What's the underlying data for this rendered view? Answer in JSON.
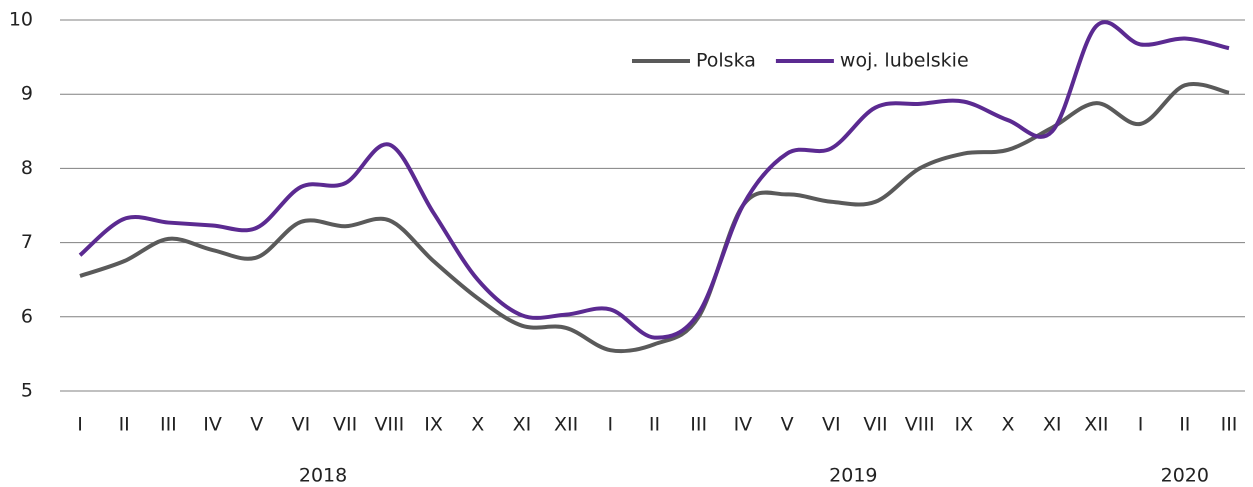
{
  "chart_data": {
    "type": "line",
    "categories": [
      "I",
      "II",
      "III",
      "IV",
      "V",
      "VI",
      "VII",
      "VIII",
      "IX",
      "X",
      "XI",
      "XII",
      "I",
      "II",
      "III",
      "IV",
      "V",
      "VI",
      "VII",
      "VIII",
      "IX",
      "X",
      "XI",
      "XII",
      "I",
      "II",
      "III"
    ],
    "x_groups": [
      {
        "label": "2018",
        "from": 0,
        "to": 11
      },
      {
        "label": "2019",
        "from": 12,
        "to": 23
      },
      {
        "label": "2020",
        "from": 24,
        "to": 26
      }
    ],
    "series": [
      {
        "name": "Polska",
        "color": "#5a5a5a",
        "values": [
          6.55,
          6.75,
          7.05,
          6.9,
          6.8,
          7.28,
          7.22,
          7.3,
          6.75,
          6.25,
          5.88,
          5.85,
          5.55,
          5.63,
          6.0,
          7.5,
          7.65,
          7.55,
          7.55,
          8.0,
          8.2,
          8.25,
          8.55,
          8.88,
          8.6,
          9.12,
          9.02
        ]
      },
      {
        "name": "woj. lubelskie",
        "color": "#5b2a91",
        "values": [
          6.83,
          7.32,
          7.27,
          7.23,
          7.2,
          7.75,
          7.8,
          8.32,
          7.4,
          6.5,
          6.02,
          6.03,
          6.1,
          5.72,
          6.05,
          7.5,
          8.2,
          8.27,
          8.82,
          8.87,
          8.9,
          8.65,
          8.5,
          9.92,
          9.67,
          9.75,
          9.62
        ]
      }
    ],
    "ylim": [
      5,
      10
    ],
    "yticks": [
      5,
      6,
      7,
      8,
      9,
      10
    ],
    "grid": true,
    "legend": "top",
    "smooth": true
  }
}
